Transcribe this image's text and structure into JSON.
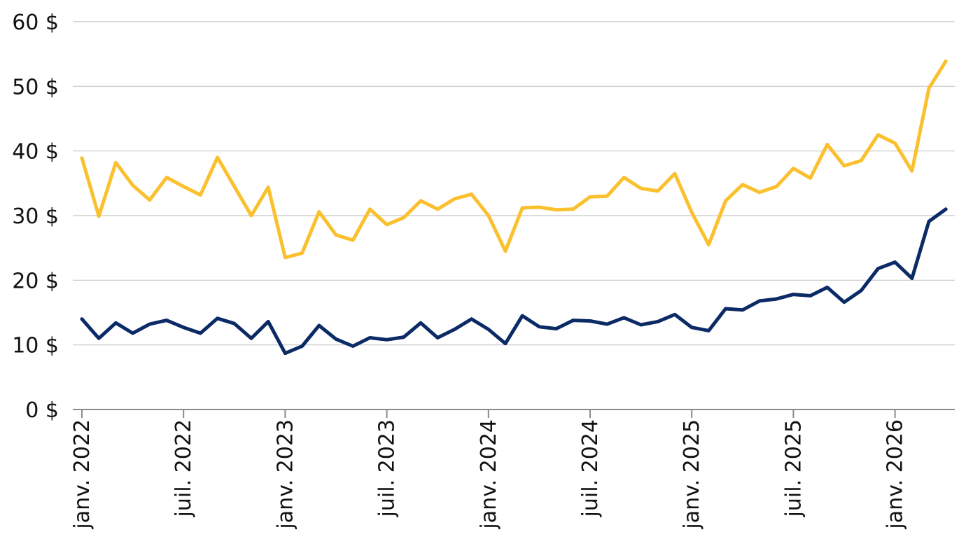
{
  "chart_data": {
    "type": "line",
    "x_start": "2022-01",
    "x_step": "1 month",
    "xlim": [
      "2022-01",
      "2026-09"
    ],
    "ylim": [
      0,
      60
    ],
    "y_ticks": [
      0,
      10,
      20,
      30,
      40,
      50,
      60
    ],
    "y_tick_labels": [
      "0 $",
      "10 $",
      "20 $",
      "30 $",
      "40 $",
      "50 $",
      "60 $"
    ],
    "x_ticks": [
      "2022-01",
      "2022-07",
      "2023-01",
      "2023-07",
      "2024-01",
      "2024-07",
      "2025-01",
      "2025-07",
      "2026-01"
    ],
    "x_tick_labels": [
      "janv. 2022",
      "juil. 2022",
      "janv. 2023",
      "juil. 2023",
      "janv. 2024",
      "juil. 2024",
      "janv. 2025",
      "juil. 2025",
      "janv. 2026"
    ],
    "grid": "horizontal",
    "series": [
      {
        "color": "#FBC02D",
        "values": [
          38.9,
          29.9,
          38.2,
          34.7,
          32.4,
          35.9,
          34.5,
          33.2,
          39.0,
          34.5,
          30.0,
          34.4,
          23.5,
          24.2,
          30.6,
          27.0,
          26.2,
          31.0,
          28.6,
          29.7,
          32.3,
          31.0,
          32.6,
          33.3,
          30.0,
          24.5,
          31.2,
          31.3,
          30.9,
          31.0,
          32.9,
          33.0,
          35.9,
          34.2,
          33.8,
          36.5,
          30.5,
          25.5,
          32.3,
          34.8,
          33.6,
          34.5,
          37.3,
          35.8,
          41.0,
          37.7,
          38.5,
          42.5,
          41.2,
          36.9,
          49.7,
          53.9
        ]
      },
      {
        "color": "#0B2A66",
        "values": [
          14.0,
          11.0,
          13.4,
          11.8,
          13.2,
          13.8,
          12.7,
          11.8,
          14.1,
          13.3,
          11.0,
          13.6,
          8.7,
          9.8,
          13.0,
          10.9,
          9.8,
          11.1,
          10.8,
          11.2,
          13.4,
          11.1,
          12.4,
          14.0,
          12.4,
          10.2,
          14.5,
          12.8,
          12.5,
          13.8,
          13.7,
          13.2,
          14.2,
          13.1,
          13.6,
          14.7,
          12.7,
          12.2,
          15.6,
          15.4,
          16.8,
          17.1,
          17.8,
          17.6,
          18.9,
          16.6,
          18.4,
          21.8,
          22.8,
          20.3,
          29.1,
          31.0
        ]
      }
    ]
  }
}
